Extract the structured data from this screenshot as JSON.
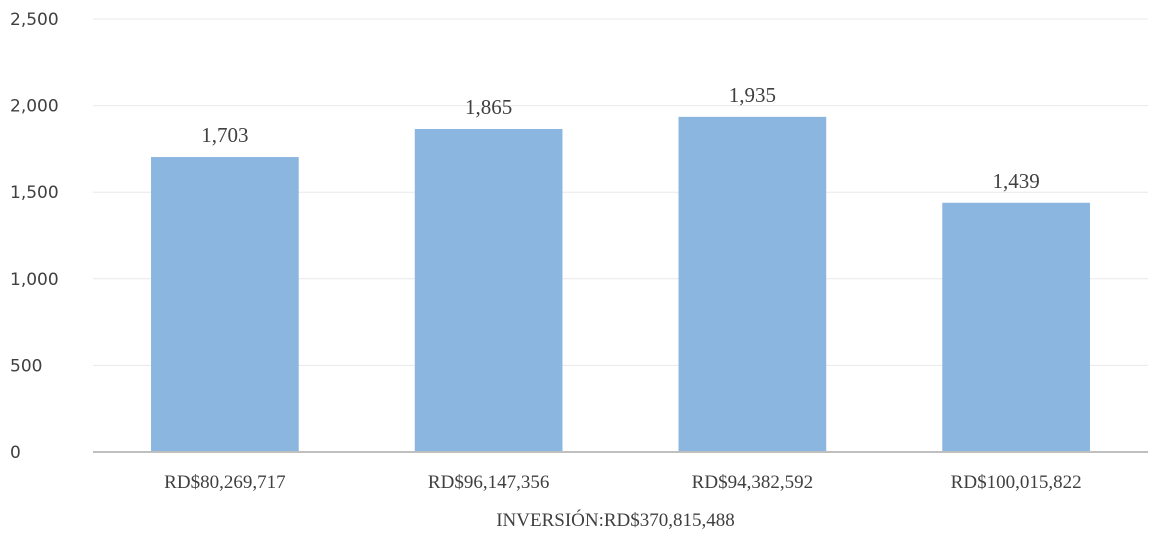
{
  "chart_data": {
    "type": "bar",
    "categories": [
      "RD$80,269,717",
      "RD$96,147,356",
      "RD$94,382,592",
      "RD$100,015,822"
    ],
    "values": [
      1703,
      1865,
      1935,
      1439
    ],
    "data_labels": [
      "1,703",
      "1,865",
      "1,935",
      "1,439"
    ],
    "title": "",
    "xlabel": "INVERSIÓN:RD$370,815,488",
    "ylabel": "",
    "ylim": [
      0,
      2500
    ],
    "yticks": [
      0,
      500,
      1000,
      1500,
      2000,
      2500
    ],
    "ytick_labels": [
      "0",
      "500",
      "1,000",
      "1,500",
      "2,000",
      "2,500"
    ],
    "grid": true,
    "legend": "none",
    "colors": {
      "bar": "#8bb6e0",
      "grid": "#e8e8e8",
      "axis": "#bfbfbf",
      "text": "#404040"
    }
  }
}
